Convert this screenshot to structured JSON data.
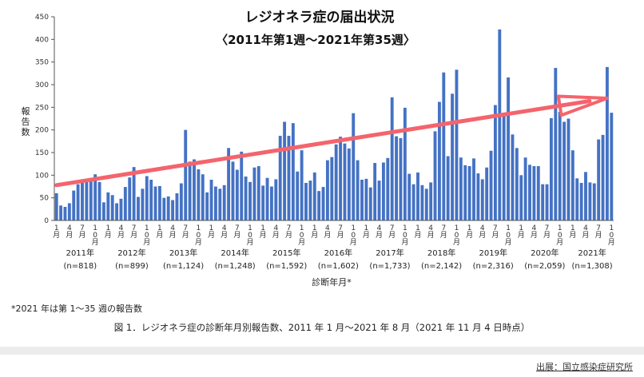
{
  "chart_data": {
    "type": "bar",
    "title": "レジオネラ症の届出状況",
    "subtitle": "〈2011年第1週〜2021年第35週〉",
    "ylabel": "報告数",
    "xlabel": "診断年月*",
    "ylim": [
      0,
      450
    ],
    "yticks": [
      0,
      50,
      100,
      150,
      200,
      250,
      300,
      350,
      400,
      450
    ],
    "month_tick_labels": [
      "1月",
      "4月",
      "7月",
      "10月"
    ],
    "years": [
      {
        "label": "2011年",
        "n": "(n=818)"
      },
      {
        "label": "2012年",
        "n": "(n=899)"
      },
      {
        "label": "2013年",
        "n": "(n=1,124)"
      },
      {
        "label": "2014年",
        "n": "(n=1,248)"
      },
      {
        "label": "2015年",
        "n": "(n=1,592)"
      },
      {
        "label": "2016年",
        "n": "(n=1,602)"
      },
      {
        "label": "2017年",
        "n": "(n=1,733)"
      },
      {
        "label": "2018年",
        "n": "(n=2,142)"
      },
      {
        "label": "2019年",
        "n": "(n=2,316)"
      },
      {
        "label": "2020年",
        "n": "(n=2,059)"
      },
      {
        "label": "2021年",
        "n": "(n=1,308)"
      }
    ],
    "values": [
      60,
      33,
      30,
      38,
      66,
      80,
      85,
      90,
      93,
      102,
      85,
      40,
      62,
      56,
      38,
      48,
      74,
      95,
      118,
      52,
      70,
      98,
      90,
      75,
      76,
      50,
      53,
      45,
      60,
      82,
      200,
      130,
      135,
      113,
      102,
      62,
      90,
      75,
      70,
      78,
      160,
      130,
      112,
      152,
      97,
      85,
      117,
      120,
      77,
      94,
      75,
      91,
      187,
      218,
      187,
      215,
      108,
      155,
      83,
      88,
      106,
      65,
      74,
      133,
      140,
      168,
      185,
      170,
      159,
      237,
      133,
      90,
      92,
      73,
      127,
      88,
      128,
      138,
      272,
      186,
      182,
      249,
      103,
      80,
      106,
      78,
      70,
      84,
      197,
      262,
      327,
      142,
      280,
      333,
      139,
      122,
      120,
      137,
      104,
      91,
      117,
      154,
      255,
      422,
      233,
      316,
      190,
      160,
      100,
      139,
      123,
      120,
      120,
      80,
      80,
      226,
      337,
      240,
      218,
      225,
      155,
      93,
      83,
      107,
      84,
      82,
      179,
      189,
      339,
      238
    ],
    "annotations": [
      "trend-arrow"
    ]
  },
  "footnote": "*2021 年は第 1〜35 週の報告数",
  "caption": "図 1．レジオネラ症の診断年月別報告数、2011 年 1 月〜2021 年 8 月（2021 年 11 月 4 日時点）",
  "source": "出展：国立感染症研究所",
  "colors": {
    "bar": "#4472c4",
    "arrow": "#f4646c",
    "axis": "#555555"
  }
}
